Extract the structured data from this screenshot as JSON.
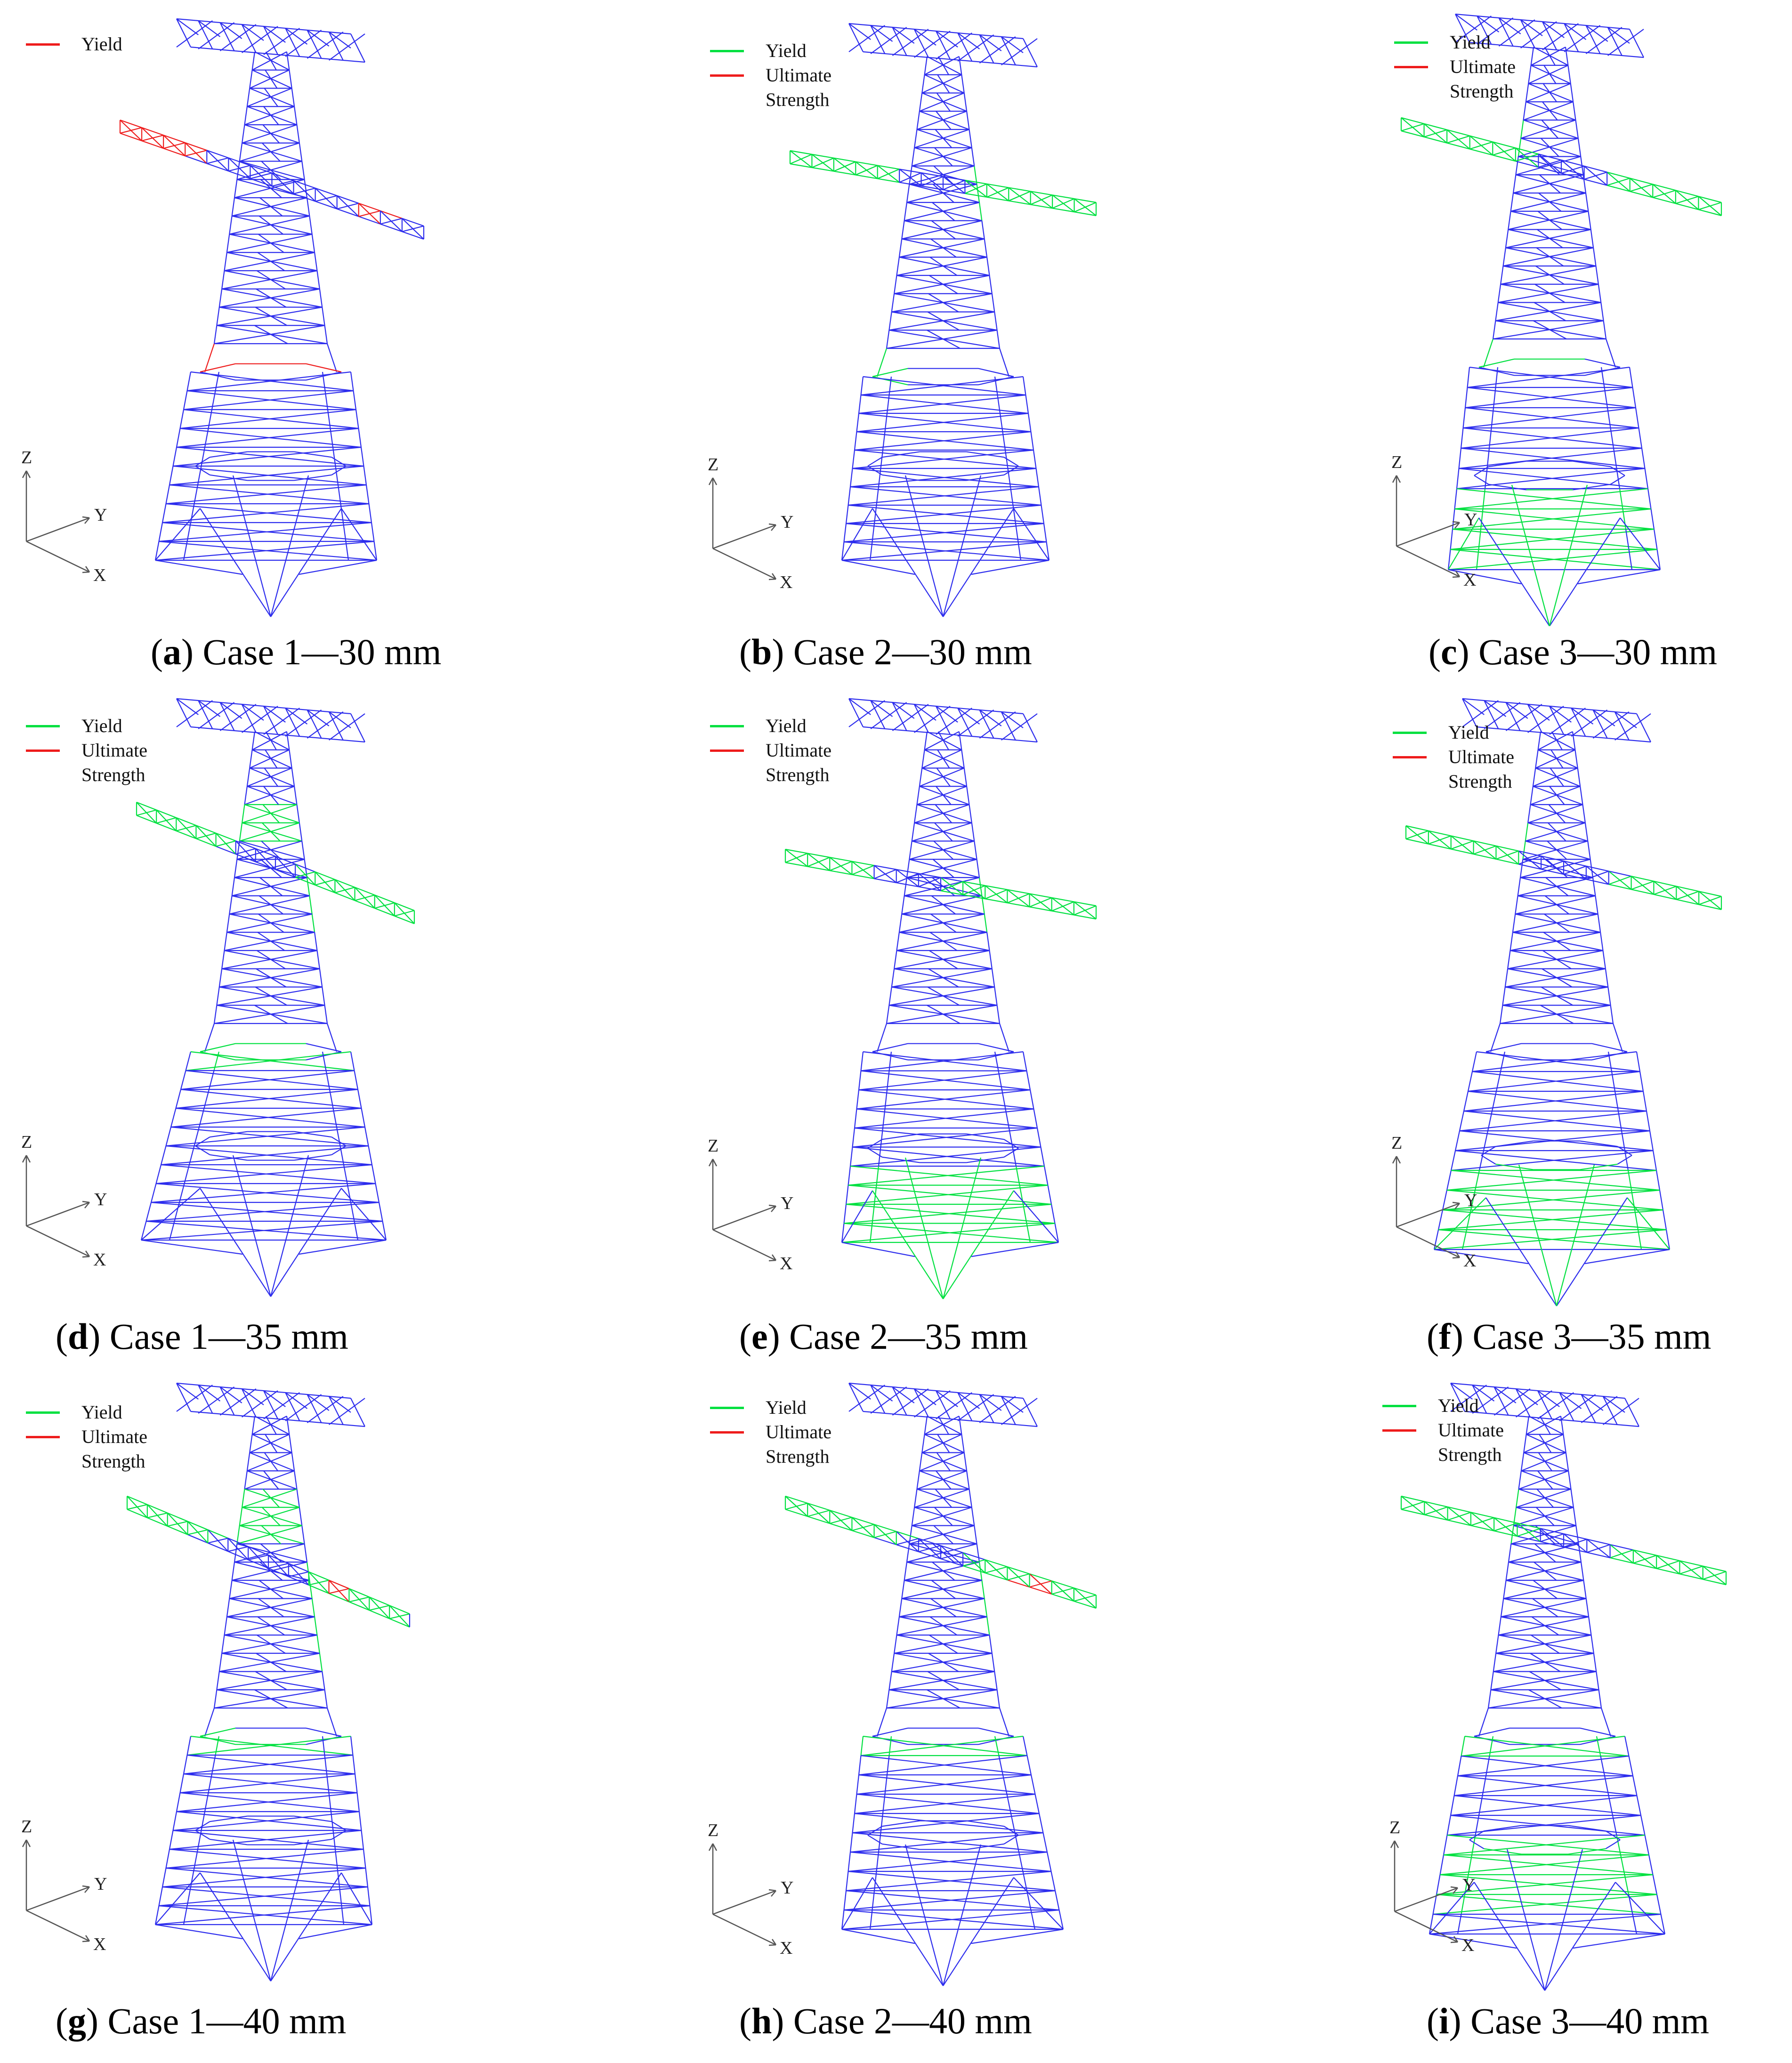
{
  "colors": {
    "member": "#2d2ded",
    "yield": "#00e040",
    "ultimate": "#ee1c1c",
    "axes": "#555555"
  },
  "axis_labels": {
    "z": "Z",
    "y": "Y",
    "x": "X"
  },
  "panels": [
    {
      "letter": "a",
      "caption": "Case 1—30 mm",
      "legend": [
        {
          "kind": "yield",
          "line1": "Yield"
        }
      ]
    },
    {
      "letter": "b",
      "caption": "Case 2—30 mm",
      "legend": [
        {
          "kind": "yield",
          "line1": "Yield"
        },
        {
          "kind": "ultimate",
          "line1": "Ultimate",
          "line2": "Strength"
        }
      ]
    },
    {
      "letter": "c",
      "caption": "Case 3—30 mm",
      "legend": [
        {
          "kind": "yield",
          "line1": "Yield"
        },
        {
          "kind": "ultimate",
          "line1": "Ultimate",
          "line2": "Strength"
        }
      ]
    },
    {
      "letter": "d",
      "caption": "Case 1—35 mm",
      "legend": [
        {
          "kind": "yield",
          "line1": "Yield"
        },
        {
          "kind": "ultimate",
          "line1": "Ultimate",
          "line2": "Strength"
        }
      ]
    },
    {
      "letter": "e",
      "caption": "Case 2—35 mm",
      "legend": [
        {
          "kind": "yield",
          "line1": "Yield"
        },
        {
          "kind": "ultimate",
          "line1": "Ultimate",
          "line2": "Strength"
        }
      ]
    },
    {
      "letter": "f",
      "caption": "Case 3—35 mm",
      "legend": [
        {
          "kind": "yield",
          "line1": "Yield"
        },
        {
          "kind": "ultimate",
          "line1": "Ultimate",
          "line2": "Strength"
        }
      ]
    },
    {
      "letter": "g",
      "caption": "Case 1—40 mm",
      "legend": [
        {
          "kind": "yield",
          "line1": "Yield"
        },
        {
          "kind": "ultimate",
          "line1": "Ultimate",
          "line2": "Strength"
        }
      ]
    },
    {
      "letter": "h",
      "caption": "Case 2—40 mm",
      "legend": [
        {
          "kind": "yield",
          "line1": "Yield"
        },
        {
          "kind": "ultimate",
          "line1": "Ultimate",
          "line2": "Strength"
        }
      ]
    },
    {
      "letter": "i",
      "caption": "Case 3—40 mm",
      "legend": [
        {
          "kind": "yield",
          "line1": "Yield"
        },
        {
          "kind": "ultimate",
          "line1": "Ultimate",
          "line2": "Strength"
        }
      ]
    }
  ]
}
